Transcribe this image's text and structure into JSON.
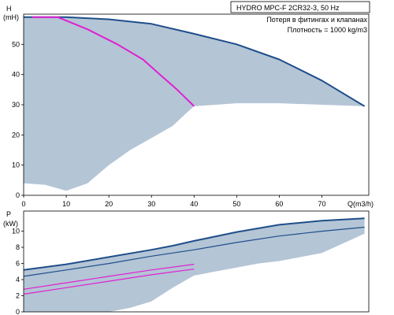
{
  "header": {
    "title": "HYDRO MPC-F 2CR32-3, 50 Hz",
    "note": "Потеря в фитингах и клапанах",
    "density": "Плотность = 1000 kg/m3"
  },
  "colors": {
    "range_fill": "#b4c5d6",
    "curve_max": "#1f4e8a",
    "curve_magenta": "#e020d0",
    "axis": "#000000"
  },
  "chart_data": [
    {
      "type": "area",
      "id": "head",
      "ylabel_symbol": "H",
      "ylabel_unit": "(mH)",
      "xlabel": "Q(m3/h)",
      "xlim": [
        0,
        81
      ],
      "ylim": [
        0,
        60
      ],
      "xticks": [
        0,
        10,
        20,
        30,
        40,
        50,
        60,
        70
      ],
      "yticks": [
        0,
        10,
        20,
        30,
        40,
        50
      ],
      "grid": false,
      "region": {
        "upper": [
          [
            0,
            59
          ],
          [
            10,
            59
          ],
          [
            20,
            58.3
          ],
          [
            30,
            56.8
          ],
          [
            40,
            53.5
          ],
          [
            50,
            50
          ],
          [
            60,
            45
          ],
          [
            70,
            38
          ],
          [
            80,
            29.5
          ]
        ],
        "lower": [
          [
            0,
            4
          ],
          [
            5,
            3.5
          ],
          [
            10,
            1.5
          ],
          [
            15,
            4
          ],
          [
            20,
            10
          ],
          [
            25,
            15
          ],
          [
            30,
            19
          ],
          [
            35,
            23
          ],
          [
            38,
            27
          ],
          [
            40,
            29.5
          ],
          [
            50,
            30.5
          ],
          [
            60,
            30.5
          ],
          [
            70,
            30
          ],
          [
            80,
            29.5
          ]
        ]
      },
      "series": [
        {
          "id": "max",
          "values": [
            [
              0,
              59
            ],
            [
              10,
              59
            ],
            [
              20,
              58.3
            ],
            [
              30,
              56.8
            ],
            [
              40,
              53.5
            ],
            [
              50,
              50
            ],
            [
              60,
              45
            ],
            [
              70,
              38
            ],
            [
              80,
              29.5
            ]
          ]
        },
        {
          "id": "magenta",
          "values": [
            [
              2,
              59
            ],
            [
              8,
              59
            ],
            [
              15,
              55
            ],
            [
              22,
              50
            ],
            [
              28,
              45
            ],
            [
              32,
              40
            ],
            [
              36,
              35
            ],
            [
              40,
              29.5
            ]
          ]
        }
      ]
    },
    {
      "type": "area",
      "id": "power",
      "ylabel_symbol": "P",
      "ylabel_unit": "(kW)",
      "xlim": [
        0,
        81
      ],
      "ylim": [
        0,
        12.5
      ],
      "xticks": [],
      "yticks": [
        0,
        2,
        4,
        6,
        8,
        10
      ],
      "grid": false,
      "region": {
        "upper": [
          [
            0,
            5.2
          ],
          [
            10,
            5.9
          ],
          [
            20,
            6.8
          ],
          [
            30,
            7.7
          ],
          [
            35,
            8.2
          ],
          [
            40,
            8.8
          ],
          [
            50,
            9.9
          ],
          [
            60,
            10.8
          ],
          [
            70,
            11.3
          ],
          [
            80,
            11.6
          ]
        ],
        "lower": [
          [
            0,
            0
          ],
          [
            20,
            0
          ],
          [
            25,
            0.5
          ],
          [
            30,
            1.3
          ],
          [
            35,
            3
          ],
          [
            40,
            4.5
          ],
          [
            45,
            5
          ],
          [
            50,
            5.5
          ],
          [
            55,
            6
          ],
          [
            60,
            6.3
          ],
          [
            65,
            6.8
          ],
          [
            70,
            7.3
          ],
          [
            80,
            9.7
          ]
        ]
      },
      "series": [
        {
          "id": "max",
          "values": [
            [
              0,
              5.2
            ],
            [
              10,
              5.9
            ],
            [
              20,
              6.8
            ],
            [
              30,
              7.7
            ],
            [
              35,
              8.2
            ],
            [
              40,
              8.8
            ],
            [
              50,
              9.9
            ],
            [
              60,
              10.8
            ],
            [
              70,
              11.3
            ],
            [
              80,
              11.6
            ]
          ]
        },
        {
          "id": "mid",
          "values": [
            [
              0,
              4.4
            ],
            [
              10,
              5.2
            ],
            [
              20,
              6
            ],
            [
              30,
              6.9
            ],
            [
              40,
              7.7
            ],
            [
              50,
              8.6
            ],
            [
              60,
              9.4
            ],
            [
              70,
              10
            ],
            [
              80,
              10.5
            ]
          ]
        },
        {
          "id": "magenta_upper",
          "values": [
            [
              0,
              2.8
            ],
            [
              10,
              3.6
            ],
            [
              20,
              4.4
            ],
            [
              30,
              5.2
            ],
            [
              40,
              5.9
            ]
          ]
        },
        {
          "id": "magenta_lower",
          "values": [
            [
              0,
              2.2
            ],
            [
              10,
              3
            ],
            [
              20,
              3.8
            ],
            [
              30,
              4.6
            ],
            [
              40,
              5.3
            ]
          ]
        }
      ]
    }
  ]
}
